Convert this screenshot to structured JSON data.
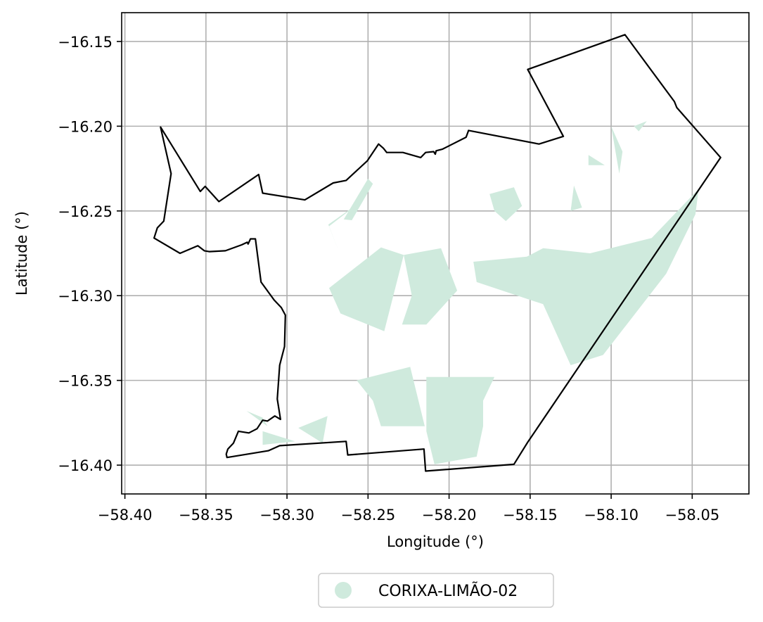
{
  "map": {
    "xlabel": "Longitude (°)",
    "ylabel": "Latitude (°)",
    "xlim": [
      -58.402,
      -58.015
    ],
    "ylim": [
      -16.417,
      -16.133
    ],
    "x_ticks": [
      -58.4,
      -58.35,
      -58.3,
      -58.25,
      -58.2,
      -58.15,
      -58.1,
      -58.05
    ],
    "x_tick_labels": [
      "−58.40",
      "−58.35",
      "−58.30",
      "−58.25",
      "−58.20",
      "−58.15",
      "−58.10",
      "−58.05"
    ],
    "y_ticks": [
      -16.15,
      -16.2,
      -16.25,
      -16.3,
      -16.35,
      -16.4
    ],
    "y_tick_labels": [
      "−16.15",
      "−16.20",
      "−16.25",
      "−16.30",
      "−16.35",
      "−16.40"
    ],
    "grid": true,
    "legend": {
      "placement": "bottom-center",
      "label": "CORIXA-LIMÃO-02"
    },
    "colors": {
      "fill": "#cfeadd",
      "boundary": "#000000",
      "grid": "#b0b0b0"
    },
    "boundary": [
      [
        -58.378,
        -16.2005
      ],
      [
        -58.3715,
        -16.228
      ],
      [
        -58.376,
        -16.256
      ],
      [
        -58.38,
        -16.26
      ],
      [
        -58.382,
        -16.266
      ],
      [
        -58.366,
        -16.275
      ],
      [
        -58.355,
        -16.2705
      ],
      [
        -58.351,
        -16.2735
      ],
      [
        -58.348,
        -16.274
      ],
      [
        -58.338,
        -16.2735
      ],
      [
        -58.328,
        -16.27
      ],
      [
        -58.3245,
        -16.2685
      ],
      [
        -58.324,
        -16.2695
      ],
      [
        -58.3225,
        -16.2665
      ],
      [
        -58.3195,
        -16.2665
      ],
      [
        -58.316,
        -16.292
      ],
      [
        -58.308,
        -16.3025
      ],
      [
        -58.3035,
        -16.307
      ],
      [
        -58.301,
        -16.3115
      ],
      [
        -58.3015,
        -16.33
      ],
      [
        -58.3045,
        -16.341
      ],
      [
        -58.306,
        -16.361
      ],
      [
        -58.304,
        -16.373
      ],
      [
        -58.3075,
        -16.371
      ],
      [
        -58.312,
        -16.374
      ],
      [
        -58.315,
        -16.3735
      ],
      [
        -58.3185,
        -16.3785
      ],
      [
        -58.3235,
        -16.381
      ],
      [
        -58.33,
        -16.38
      ],
      [
        -58.333,
        -16.387
      ],
      [
        -58.3365,
        -16.3905
      ],
      [
        -58.3375,
        -16.3935
      ],
      [
        -58.337,
        -16.3955
      ],
      [
        -58.3115,
        -16.3915
      ],
      [
        -58.3045,
        -16.3885
      ],
      [
        -58.2635,
        -16.386
      ],
      [
        -58.2625,
        -16.394
      ],
      [
        -58.2155,
        -16.3905
      ],
      [
        -58.2145,
        -16.4035
      ],
      [
        -58.16,
        -16.3995
      ],
      [
        -58.1515,
        -16.3865
      ],
      [
        -58.0325,
        -16.2185
      ],
      [
        -58.0595,
        -16.189
      ],
      [
        -58.061,
        -16.1855
      ],
      [
        -58.0915,
        -16.146
      ],
      [
        -58.1515,
        -16.1665
      ],
      [
        -58.1295,
        -16.206
      ],
      [
        -58.1445,
        -16.2105
      ],
      [
        -58.188,
        -16.2025
      ],
      [
        -58.1895,
        -16.2065
      ],
      [
        -58.204,
        -16.2135
      ],
      [
        -58.208,
        -16.2145
      ],
      [
        -58.2085,
        -16.2165
      ],
      [
        -58.2095,
        -16.215
      ],
      [
        -58.2145,
        -16.2155
      ],
      [
        -58.2175,
        -16.2185
      ],
      [
        -58.2285,
        -16.2155
      ],
      [
        -58.2385,
        -16.2155
      ],
      [
        -58.2405,
        -16.213
      ],
      [
        -58.2435,
        -16.2105
      ],
      [
        -58.2505,
        -16.2205
      ],
      [
        -58.2635,
        -16.232
      ],
      [
        -58.2715,
        -16.2335
      ],
      [
        -58.289,
        -16.2435
      ],
      [
        -58.315,
        -16.2395
      ],
      [
        -58.3175,
        -16.2285
      ],
      [
        -58.342,
        -16.2445
      ],
      [
        -58.3505,
        -16.2355
      ],
      [
        -58.3535,
        -16.2385
      ]
    ],
    "fields": [
      [
        [
          -58.265,
          -16.255
        ],
        [
          -58.25,
          -16.231
        ],
        [
          -58.247,
          -16.234
        ],
        [
          -58.26,
          -16.2555
        ]
      ],
      [
        [
          -58.2745,
          -16.258
        ],
        [
          -58.253,
          -16.2435
        ],
        [
          -58.274,
          -16.259
        ],
        [
          -58.268,
          -16.274
        ],
        [
          -58.2745,
          -16.258
        ]
      ],
      [
        [
          -58.274,
          -16.2955
        ],
        [
          -58.242,
          -16.2715
        ],
        [
          -58.228,
          -16.276
        ],
        [
          -58.24,
          -16.321
        ],
        [
          -58.267,
          -16.3105
        ],
        [
          -58.274,
          -16.2955
        ]
      ],
      [
        [
          -58.228,
          -16.276
        ],
        [
          -58.205,
          -16.272
        ],
        [
          -58.195,
          -16.297
        ],
        [
          -58.214,
          -16.317
        ],
        [
          -58.229,
          -16.317
        ],
        [
          -58.223,
          -16.3
        ]
      ],
      [
        [
          -58.224,
          -16.342
        ],
        [
          -58.257,
          -16.35
        ],
        [
          -58.247,
          -16.362
        ],
        [
          -58.242,
          -16.377
        ],
        [
          -58.215,
          -16.377
        ],
        [
          -58.224,
          -16.342
        ]
      ],
      [
        [
          -58.214,
          -16.348
        ],
        [
          -58.172,
          -16.348
        ],
        [
          -58.179,
          -16.362
        ],
        [
          -58.179,
          -16.377
        ],
        [
          -58.183,
          -16.395
        ],
        [
          -58.209,
          -16.3995
        ],
        [
          -58.214,
          -16.38
        ]
      ],
      [
        [
          -58.185,
          -16.28
        ],
        [
          -58.152,
          -16.277
        ],
        [
          -58.142,
          -16.272
        ],
        [
          -58.113,
          -16.275
        ],
        [
          -58.075,
          -16.266
        ],
        [
          -58.046,
          -16.237
        ],
        [
          -58.048,
          -16.252
        ],
        [
          -58.066,
          -16.287
        ],
        [
          -58.105,
          -16.335
        ],
        [
          -58.125,
          -16.341
        ],
        [
          -58.142,
          -16.305
        ],
        [
          -58.183,
          -16.292
        ]
      ],
      [
        [
          -58.16,
          -16.236
        ],
        [
          -58.175,
          -16.24
        ],
        [
          -58.172,
          -16.25
        ],
        [
          -58.165,
          -16.256
        ],
        [
          -58.155,
          -16.247
        ],
        [
          -58.16,
          -16.236
        ]
      ],
      [
        [
          -58.1,
          -16.2
        ],
        [
          -58.093,
          -16.215
        ],
        [
          -58.095,
          -16.228
        ],
        [
          -58.1,
          -16.2
        ]
      ],
      [
        [
          -58.114,
          -16.217
        ],
        [
          -58.104,
          -16.223
        ],
        [
          -58.114,
          -16.223
        ]
      ],
      [
        [
          -58.123,
          -16.235
        ],
        [
          -58.118,
          -16.248
        ],
        [
          -58.125,
          -16.25
        ]
      ],
      [
        [
          -58.078,
          -16.197
        ],
        [
          -58.086,
          -16.2
        ],
        [
          -58.083,
          -16.203
        ]
      ],
      [
        [
          -58.325,
          -16.368
        ],
        [
          -58.315,
          -16.372
        ],
        [
          -58.312,
          -16.377
        ],
        [
          -58.325,
          -16.368
        ]
      ],
      [
        [
          -58.315,
          -16.38
        ],
        [
          -58.295,
          -16.386
        ],
        [
          -58.315,
          -16.388
        ],
        [
          -58.315,
          -16.38
        ]
      ],
      [
        [
          -58.293,
          -16.378
        ],
        [
          -58.275,
          -16.371
        ],
        [
          -58.278,
          -16.387
        ],
        [
          -58.293,
          -16.378
        ]
      ]
    ]
  }
}
